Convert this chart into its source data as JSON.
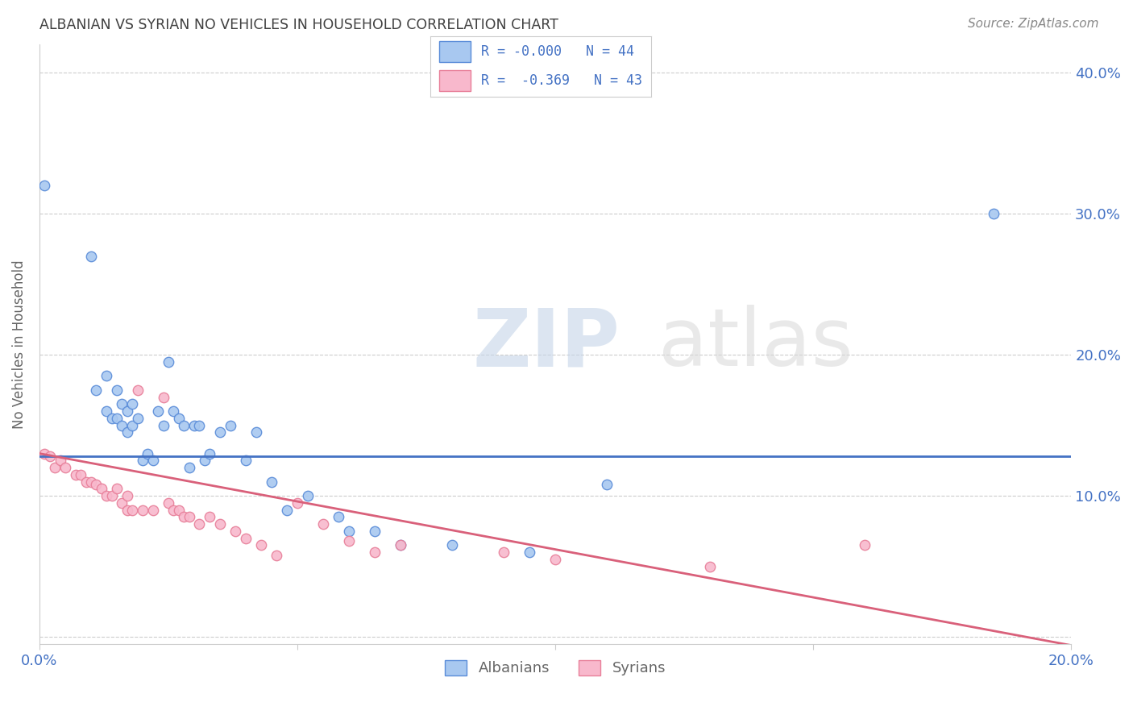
{
  "title": "ALBANIAN VS SYRIAN NO VEHICLES IN HOUSEHOLD CORRELATION CHART",
  "source": "Source: ZipAtlas.com",
  "ylabel": "No Vehicles in Household",
  "xlim": [
    0.0,
    0.2
  ],
  "ylim": [
    -0.005,
    0.42
  ],
  "watermark_zip": "ZIP",
  "watermark_atlas": "atlas",
  "albanian_R": "-0.000",
  "albanian_N": 44,
  "syrian_R": "-0.369",
  "syrian_N": 43,
  "albanian_color": "#A8C8F0",
  "syrian_color": "#F8B8CC",
  "albanian_edge_color": "#5B8DD9",
  "syrian_edge_color": "#E8809A",
  "albanian_line_color": "#4472C4",
  "syrian_line_color": "#D9607A",
  "albanian_line_intercept": 0.128,
  "albanian_line_slope": 0.0,
  "syrian_line_intercept": 0.13,
  "syrian_line_slope": -0.68,
  "background_color": "#FFFFFF",
  "grid_color": "#CCCCCC",
  "title_color": "#404040",
  "source_color": "#888888",
  "axis_label_color": "#666666",
  "tick_color": "#4472C4",
  "marker_size": 80,
  "albanian_x": [
    0.001,
    0.01,
    0.011,
    0.013,
    0.013,
    0.014,
    0.015,
    0.015,
    0.016,
    0.016,
    0.017,
    0.017,
    0.018,
    0.018,
    0.019,
    0.02,
    0.021,
    0.022,
    0.023,
    0.024,
    0.025,
    0.026,
    0.027,
    0.028,
    0.029,
    0.03,
    0.031,
    0.032,
    0.033,
    0.035,
    0.037,
    0.04,
    0.042,
    0.045,
    0.048,
    0.052,
    0.058,
    0.06,
    0.065,
    0.07,
    0.08,
    0.095,
    0.11,
    0.185
  ],
  "albanian_y": [
    0.32,
    0.27,
    0.175,
    0.16,
    0.185,
    0.155,
    0.155,
    0.175,
    0.15,
    0.165,
    0.145,
    0.16,
    0.15,
    0.165,
    0.155,
    0.125,
    0.13,
    0.125,
    0.16,
    0.15,
    0.195,
    0.16,
    0.155,
    0.15,
    0.12,
    0.15,
    0.15,
    0.125,
    0.13,
    0.145,
    0.15,
    0.125,
    0.145,
    0.11,
    0.09,
    0.1,
    0.085,
    0.075,
    0.075,
    0.065,
    0.065,
    0.06,
    0.108,
    0.3
  ],
  "syrian_x": [
    0.001,
    0.002,
    0.003,
    0.004,
    0.005,
    0.007,
    0.008,
    0.009,
    0.01,
    0.011,
    0.012,
    0.013,
    0.014,
    0.015,
    0.016,
    0.017,
    0.017,
    0.018,
    0.019,
    0.02,
    0.022,
    0.024,
    0.025,
    0.026,
    0.027,
    0.028,
    0.029,
    0.031,
    0.033,
    0.035,
    0.038,
    0.04,
    0.043,
    0.046,
    0.05,
    0.055,
    0.06,
    0.065,
    0.07,
    0.09,
    0.1,
    0.13,
    0.16
  ],
  "syrian_y": [
    0.13,
    0.128,
    0.12,
    0.125,
    0.12,
    0.115,
    0.115,
    0.11,
    0.11,
    0.108,
    0.105,
    0.1,
    0.1,
    0.105,
    0.095,
    0.09,
    0.1,
    0.09,
    0.175,
    0.09,
    0.09,
    0.17,
    0.095,
    0.09,
    0.09,
    0.085,
    0.085,
    0.08,
    0.085,
    0.08,
    0.075,
    0.07,
    0.065,
    0.058,
    0.095,
    0.08,
    0.068,
    0.06,
    0.065,
    0.06,
    0.055,
    0.05,
    0.065
  ]
}
